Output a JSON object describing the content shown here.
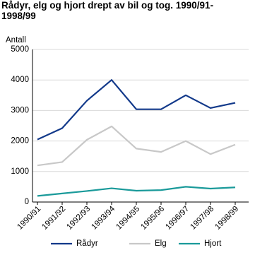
{
  "chart_data": {
    "type": "line",
    "title": "Rådyr, elg og hjort drept av bil og tog. 1990/91-1998/99",
    "y_label": "Antall",
    "categories": [
      "1990/91",
      "1991/92",
      "1992/93",
      "1993/94",
      "1994/95",
      "1995/96",
      "1996/97",
      "1997/98",
      "1998/99"
    ],
    "series": [
      {
        "name": "Rådyr",
        "color": "#12398a",
        "values": [
          2050,
          2420,
          3320,
          4000,
          3040,
          3040,
          3500,
          3080,
          3250
        ]
      },
      {
        "name": "Elg",
        "color": "#c8c8c8",
        "values": [
          1200,
          1310,
          2040,
          2480,
          1750,
          1640,
          2000,
          1570,
          1880
        ]
      },
      {
        "name": "Hjort",
        "color": "#1a9a9a",
        "values": [
          200,
          280,
          360,
          450,
          370,
          390,
          500,
          440,
          480
        ]
      }
    ],
    "ylim": [
      0,
      5000
    ],
    "yticks": [
      0,
      1000,
      2000,
      3000,
      4000,
      5000
    ],
    "grid": true
  }
}
